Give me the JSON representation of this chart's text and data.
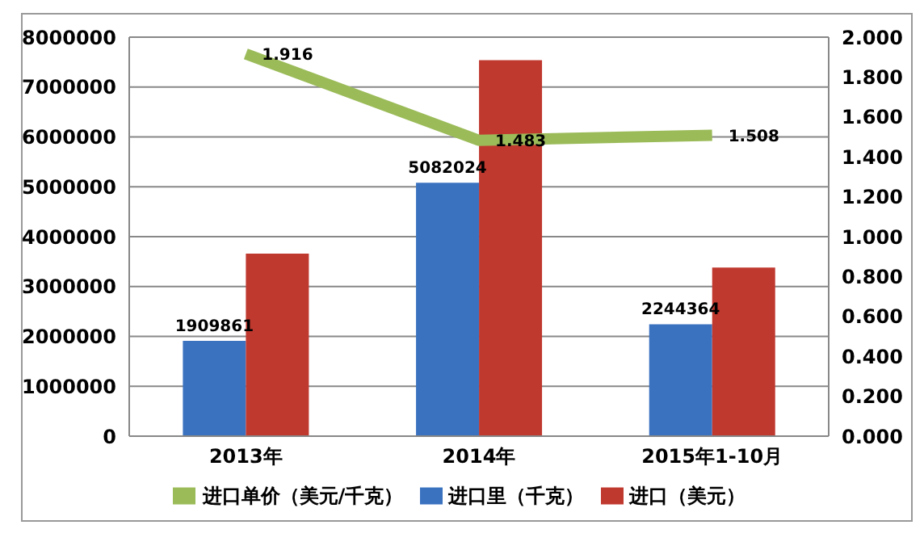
{
  "chart_data": {
    "type": "bar",
    "categories": [
      "2013年",
      "2014年",
      "2015年1-10月"
    ],
    "series": [
      {
        "name": "进口里（千克）",
        "color": "#3a72c0",
        "values": [
          1909861,
          5082024,
          2244364
        ],
        "value_labels": [
          "1909861",
          "5082024",
          "2244364"
        ]
      },
      {
        "name": "进口（美元）",
        "color": "#c0392f",
        "values": [
          3660000,
          7540000,
          3380000
        ]
      },
      {
        "name": "进口单价（美元/千克）",
        "type": "line",
        "axis": "y2",
        "color": "#9bbb59",
        "values": [
          1.916,
          1.483,
          1.508
        ],
        "value_labels": [
          "1.916",
          "1.483",
          "1.508"
        ]
      }
    ],
    "ylim": [
      0,
      8000000
    ],
    "yticks": [
      0,
      1000000,
      2000000,
      3000000,
      4000000,
      5000000,
      6000000,
      7000000,
      8000000
    ],
    "y2lim": [
      0,
      2
    ],
    "y2ticks": [
      {
        "value": 0,
        "label": "0.000"
      },
      {
        "value": 0.2,
        "label": "0.200"
      },
      {
        "value": 0.4,
        "label": "0.400"
      },
      {
        "value": 0.6,
        "label": "0.600"
      },
      {
        "value": 0.8,
        "label": "0.800"
      },
      {
        "value": 1,
        "label": "1.000"
      },
      {
        "value": 1.2,
        "label": "1.200"
      },
      {
        "value": 1.4,
        "label": "1.400"
      },
      {
        "value": 1.6,
        "label": "1.600"
      },
      {
        "value": 1.8,
        "label": "1.800"
      },
      {
        "value": 2,
        "label": "2.000"
      }
    ],
    "grid": "y",
    "legend": "bottom",
    "marker": "none"
  }
}
